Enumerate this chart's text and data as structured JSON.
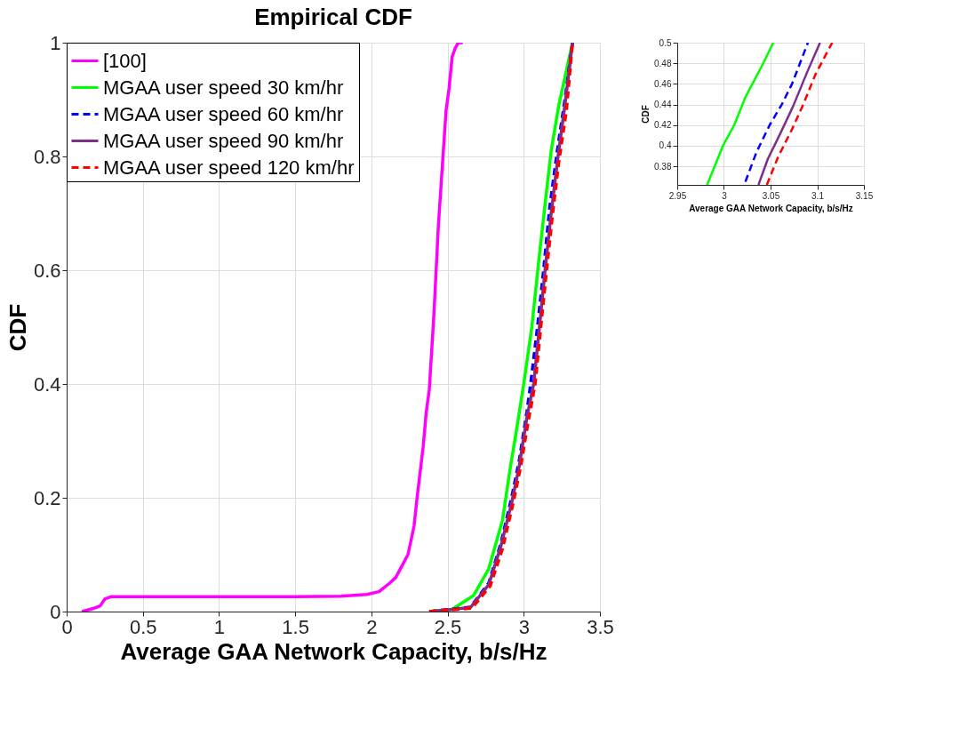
{
  "chart_data": [
    {
      "type": "line",
      "title": "Empirical CDF",
      "xlabel": "Average GAA Network Capacity, b/s/Hz",
      "ylabel": "CDF",
      "xlim": [
        0,
        3.5
      ],
      "xticks": [
        0,
        0.5,
        1,
        1.5,
        2,
        2.5,
        3,
        3.5
      ],
      "ylim": [
        0,
        1
      ],
      "yticks": [
        0,
        0.2,
        0.4,
        0.6,
        0.8,
        1
      ],
      "grid": true,
      "legend": "top left",
      "marker": "none",
      "series": [
        {
          "name": "[100]",
          "color": "#ff00ff",
          "line_style": "solid",
          "x": [
            0.1,
            0.17,
            0.22,
            0.25,
            0.29,
            0.5,
            1,
            1.5,
            1.8,
            1.97,
            2.05,
            2.12,
            2.16,
            2.21,
            2.24,
            2.28,
            2.3,
            2.34,
            2.36,
            2.38,
            2.41,
            2.44,
            2.47,
            2.49,
            2.51,
            2.53,
            2.55,
            2.57,
            2.6
          ],
          "values": [
            0,
            0.005,
            0.01,
            0.022,
            0.026,
            0.026,
            0.026,
            0.026,
            0.027,
            0.03,
            0.035,
            0.05,
            0.06,
            0.085,
            0.1,
            0.15,
            0.2,
            0.29,
            0.35,
            0.39,
            0.52,
            0.68,
            0.8,
            0.88,
            0.92,
            0.975,
            0.99,
            1,
            1
          ]
        },
        {
          "name": "MGAA user speed 30 km/hr",
          "color": "#00ff00",
          "line_style": "solid",
          "x": [
            2.38,
            2.53,
            2.67,
            2.77,
            2.86,
            2.91,
            2.95,
            3.0,
            3.053,
            3.1,
            3.15,
            3.18,
            3.23,
            3.32
          ],
          "values": [
            0,
            0.004,
            0.028,
            0.075,
            0.16,
            0.25,
            0.315,
            0.4,
            0.5,
            0.62,
            0.74,
            0.81,
            0.89,
            1
          ]
        },
        {
          "name": "MGAA user speed 60 km/hr",
          "color": "#0000ff",
          "line_style": "dashed",
          "x": [
            2.38,
            2.65,
            2.77,
            2.85,
            2.92,
            2.97,
            3.02,
            3.045,
            3.09,
            3.13,
            3.17,
            3.22,
            3.27,
            3.32
          ],
          "values": [
            0,
            0.008,
            0.05,
            0.12,
            0.2,
            0.265,
            0.35,
            0.4,
            0.5,
            0.6,
            0.71,
            0.81,
            0.9,
            1
          ]
        },
        {
          "name": "MGAA user speed 90 km/hr",
          "color": "#7e2f8e",
          "line_style": "solid",
          "x": [
            2.38,
            2.65,
            2.77,
            2.85,
            2.92,
            2.97,
            3.02,
            3.065,
            3.103,
            3.14,
            3.18,
            3.225,
            3.27,
            3.32
          ],
          "values": [
            0,
            0.007,
            0.047,
            0.115,
            0.19,
            0.255,
            0.34,
            0.4,
            0.5,
            0.6,
            0.7,
            0.8,
            0.89,
            1
          ]
        },
        {
          "name": "MGAA user speed 120 km/hr",
          "color": "#ff0000",
          "line_style": "dashed",
          "x": [
            2.38,
            2.66,
            2.78,
            2.86,
            2.93,
            2.98,
            3.03,
            3.075,
            3.112,
            3.15,
            3.19,
            3.23,
            3.28,
            3.32
          ],
          "values": [
            0,
            0.006,
            0.045,
            0.11,
            0.19,
            0.255,
            0.335,
            0.4,
            0.5,
            0.6,
            0.7,
            0.79,
            0.88,
            1
          ]
        }
      ]
    },
    {
      "type": "line",
      "xlabel": "Average GAA Network Capacity, b/s/Hz",
      "ylabel": "CDF",
      "xlim": [
        2.95,
        3.15
      ],
      "xticks": [
        2.95,
        3,
        3.05,
        3.1,
        3.15
      ],
      "ylim": [
        0.362,
        0.5
      ],
      "yticks": [
        0.38,
        0.4,
        0.42,
        0.44,
        0.46,
        0.48,
        0.5
      ],
      "grid": true,
      "marker": "none",
      "series": [
        {
          "color": "#00ff00",
          "line_style": "solid",
          "x": [
            2.982,
            2.999,
            3.011,
            3.023,
            3.041,
            3.053
          ],
          "values": [
            0.362,
            0.4,
            0.42,
            0.447,
            0.478,
            0.5
          ]
        },
        {
          "color": "#0000ff",
          "line_style": "dashed",
          "x": [
            3.023,
            3.035,
            3.049,
            3.062,
            3.073,
            3.09
          ],
          "values": [
            0.365,
            0.394,
            0.42,
            0.44,
            0.46,
            0.5
          ]
        },
        {
          "color": "#7e2f8e",
          "line_style": "solid",
          "x": [
            3.037,
            3.047,
            3.061,
            3.074,
            3.089,
            3.103
          ],
          "values": [
            0.362,
            0.387,
            0.413,
            0.438,
            0.471,
            0.5
          ]
        },
        {
          "color": "#ff0000",
          "line_style": "dashed",
          "x": [
            3.046,
            3.058,
            3.073,
            3.085,
            3.098,
            3.116
          ],
          "values": [
            0.362,
            0.389,
            0.416,
            0.44,
            0.469,
            0.5
          ]
        }
      ]
    }
  ]
}
